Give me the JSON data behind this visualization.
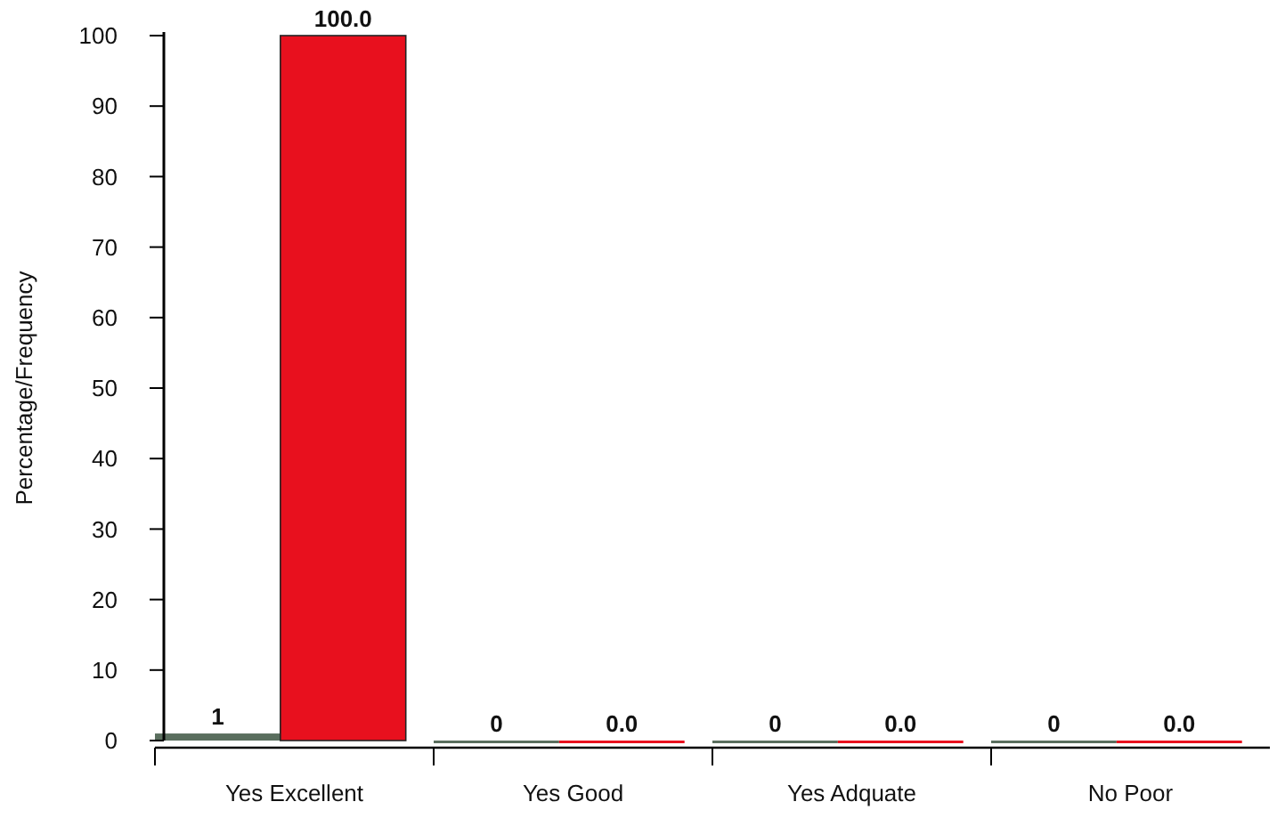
{
  "chart_data": {
    "type": "bar",
    "ylabel": "Percentage/Frequency",
    "categories": [
      "Yes Excellent",
      "Yes Good",
      "Yes Adquate",
      "No Poor"
    ],
    "series": [
      {
        "color": "#5a6e5e",
        "values": [
          1,
          0,
          0,
          0
        ],
        "value_labels": [
          "1",
          "0",
          "0",
          "0"
        ]
      },
      {
        "color": "#e8101e",
        "values": [
          100,
          0,
          0,
          0
        ],
        "value_labels": [
          "100.0",
          "0.0",
          "0.0",
          "0.0"
        ]
      }
    ],
    "ylim": [
      0,
      100
    ],
    "yticks": [
      0,
      10,
      20,
      30,
      40,
      50,
      60,
      70,
      80,
      90,
      100
    ]
  }
}
